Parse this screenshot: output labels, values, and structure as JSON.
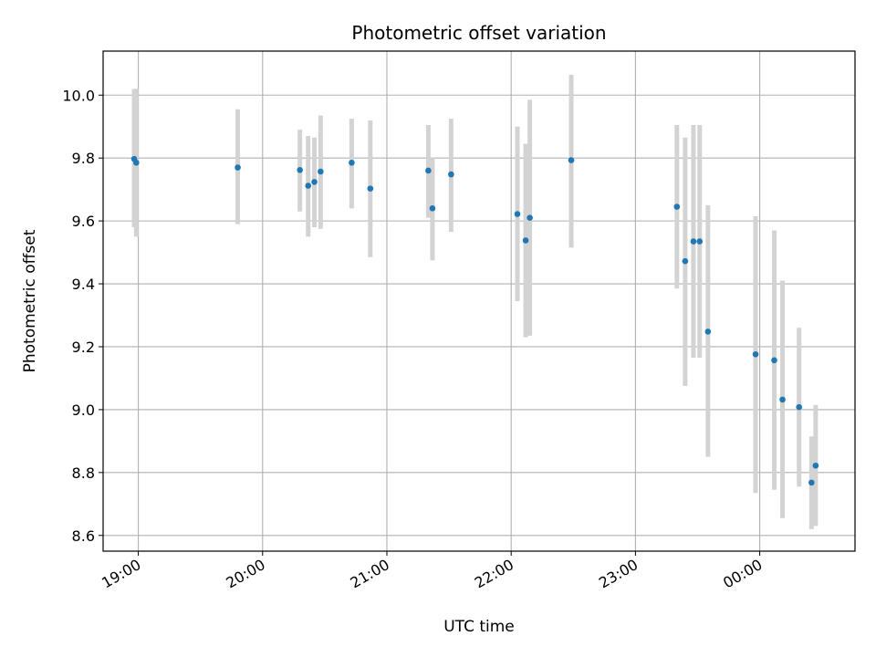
{
  "chart_data": {
    "type": "scatter",
    "title": "Photometric offset variation",
    "xlabel": "UTC time",
    "ylabel": "Photometric offset",
    "grid": true,
    "ylim": [
      8.55,
      10.14
    ],
    "yticks": [
      8.6,
      8.8,
      9.0,
      9.2,
      9.4,
      9.6,
      9.8,
      10.0
    ],
    "ytick_labels": [
      "8.6",
      "8.8",
      "9.0",
      "9.2",
      "9.4",
      "9.6",
      "9.8",
      "10.0"
    ],
    "xlim": [
      "18:43",
      "00:46"
    ],
    "xticks": [
      "19:00",
      "20:00",
      "21:00",
      "22:00",
      "23:00",
      "00:00"
    ],
    "xtick_labels": [
      "19:00",
      "20:00",
      "21:00",
      "22:00",
      "23:00",
      "00:00"
    ],
    "marker_color": "#1f77b4",
    "errorbar_color": "#d3d3d3",
    "series": [
      {
        "points": [
          {
            "x": "18:58",
            "y": 9.797,
            "ylow": 9.58,
            "yhigh": 10.02
          },
          {
            "x": "18:59",
            "y": 9.785,
            "ylow": 9.55,
            "yhigh": 10.02
          },
          {
            "x": "19:48",
            "y": 9.77,
            "ylow": 9.59,
            "yhigh": 9.955
          },
          {
            "x": "20:18",
            "y": 9.762,
            "ylow": 9.63,
            "yhigh": 9.89
          },
          {
            "x": "20:22",
            "y": 9.712,
            "ylow": 9.55,
            "yhigh": 9.87
          },
          {
            "x": "20:25",
            "y": 9.724,
            "ylow": 9.58,
            "yhigh": 9.865
          },
          {
            "x": "20:28",
            "y": 9.757,
            "ylow": 9.575,
            "yhigh": 9.935
          },
          {
            "x": "20:43",
            "y": 9.785,
            "ylow": 9.64,
            "yhigh": 9.925
          },
          {
            "x": "20:52",
            "y": 9.703,
            "ylow": 9.485,
            "yhigh": 9.92
          },
          {
            "x": "21:20",
            "y": 9.76,
            "ylow": 9.61,
            "yhigh": 9.905
          },
          {
            "x": "21:22",
            "y": 9.64,
            "ylow": 9.475,
            "yhigh": 9.8
          },
          {
            "x": "21:31",
            "y": 9.748,
            "ylow": 9.565,
            "yhigh": 9.925
          },
          {
            "x": "22:03",
            "y": 9.622,
            "ylow": 9.345,
            "yhigh": 9.9
          },
          {
            "x": "22:07",
            "y": 9.538,
            "ylow": 9.23,
            "yhigh": 9.845
          },
          {
            "x": "22:09",
            "y": 9.61,
            "ylow": 9.235,
            "yhigh": 9.985
          },
          {
            "x": "22:29",
            "y": 9.793,
            "ylow": 9.515,
            "yhigh": 10.065
          },
          {
            "x": "23:20",
            "y": 9.645,
            "ylow": 9.385,
            "yhigh": 9.905
          },
          {
            "x": "23:24",
            "y": 9.472,
            "ylow": 9.075,
            "yhigh": 9.865
          },
          {
            "x": "23:28",
            "y": 9.535,
            "ylow": 9.165,
            "yhigh": 9.905
          },
          {
            "x": "23:31",
            "y": 9.535,
            "ylow": 9.165,
            "yhigh": 9.905
          },
          {
            "x": "23:35",
            "y": 9.248,
            "ylow": 8.85,
            "yhigh": 9.65
          },
          {
            "x": "23:58",
            "y": 9.176,
            "ylow": 8.735,
            "yhigh": 9.615
          },
          {
            "x": "00:07",
            "y": 9.157,
            "ylow": 8.745,
            "yhigh": 9.57
          },
          {
            "x": "00:11",
            "y": 9.032,
            "ylow": 8.655,
            "yhigh": 9.41
          },
          {
            "x": "00:19",
            "y": 9.008,
            "ylow": 8.755,
            "yhigh": 9.26
          },
          {
            "x": "00:25",
            "y": 8.768,
            "ylow": 8.62,
            "yhigh": 8.915
          },
          {
            "x": "00:27",
            "y": 8.822,
            "ylow": 8.63,
            "yhigh": 9.015
          }
        ]
      }
    ]
  }
}
